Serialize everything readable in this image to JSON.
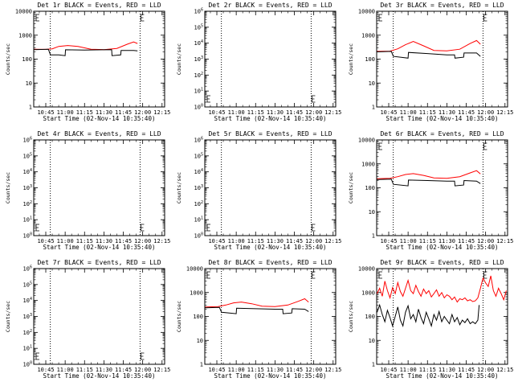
{
  "chart_data": {
    "type": "line",
    "layout": "3x3 grid",
    "xlabel": "Start Time (02-Nov-14 10:35:40)",
    "ylabel": "Counts/sec",
    "x_tick_labels": [
      "10:45",
      "11:00",
      "11:15",
      "11:30",
      "11:45",
      "12:00",
      "12:15"
    ],
    "x_tick_minutes": [
      45,
      60,
      75,
      90,
      105,
      120,
      135
    ],
    "x_range_minutes": [
      35.67,
      137
    ],
    "series_colors": {
      "events": "#000000",
      "lld": "#ff0000"
    },
    "vertical_dotted_lines_minutes": [
      48.5,
      118
    ],
    "panels": [
      {
        "title": "Det 1r BLACK = Events, RED = LLD",
        "yscale": "log",
        "ylim": [
          1,
          10000
        ],
        "y_tick_labels": [
          "1",
          "10",
          "100",
          "1000",
          "10000"
        ],
        "events": [
          [
            36,
            250
          ],
          [
            47,
            260
          ],
          [
            48.6,
            150
          ],
          [
            55,
            150
          ],
          [
            60,
            140
          ],
          [
            60.3,
            245
          ],
          [
            75,
            240
          ],
          [
            96,
            250
          ],
          [
            96.3,
            140
          ],
          [
            103,
            150
          ],
          [
            103.3,
            230
          ],
          [
            113,
            230
          ],
          [
            116,
            220
          ]
        ],
        "lld": [
          [
            36,
            260
          ],
          [
            45,
            255
          ],
          [
            50,
            270
          ],
          [
            55,
            340
          ],
          [
            62,
            370
          ],
          [
            70,
            340
          ],
          [
            80,
            260
          ],
          [
            90,
            250
          ],
          [
            100,
            280
          ],
          [
            108,
            420
          ],
          [
            113,
            520
          ],
          [
            116,
            450
          ]
        ]
      },
      {
        "title": "Det 2r BLACK = Events, RED = LLD",
        "yscale": "log",
        "ylim": [
          1,
          1000000
        ],
        "y_tick_labels": [
          "10^0",
          "10^1",
          "10^2",
          "10^3",
          "10^4",
          "10^5",
          "10^6"
        ],
        "events": [],
        "lld": []
      },
      {
        "title": "Det 3r BLACK = Events, RED = LLD",
        "yscale": "log",
        "ylim": [
          1,
          10000
        ],
        "y_tick_labels": [
          "1",
          "10",
          "100",
          "1000",
          "10000"
        ],
        "events": [
          [
            36,
            200
          ],
          [
            47,
            210
          ],
          [
            48.6,
            130
          ],
          [
            60,
            110
          ],
          [
            60.3,
            190
          ],
          [
            75,
            170
          ],
          [
            90,
            150
          ],
          [
            96,
            150
          ],
          [
            96.3,
            110
          ],
          [
            103,
            120
          ],
          [
            103.3,
            180
          ],
          [
            113,
            180
          ],
          [
            116,
            130
          ]
        ],
        "lld": [
          [
            36,
            210
          ],
          [
            46,
            215
          ],
          [
            52,
            270
          ],
          [
            58,
            400
          ],
          [
            64,
            550
          ],
          [
            72,
            360
          ],
          [
            80,
            230
          ],
          [
            90,
            220
          ],
          [
            100,
            260
          ],
          [
            108,
            450
          ],
          [
            113,
            600
          ],
          [
            116,
            420
          ]
        ]
      },
      {
        "title": "Det 4r BLACK = Events, RED = LLD",
        "yscale": "log",
        "ylim": [
          1,
          1000000
        ],
        "y_tick_labels": [
          "10^0",
          "10^1",
          "10^2",
          "10^3",
          "10^4",
          "10^5",
          "10^6"
        ],
        "events": [],
        "lld": []
      },
      {
        "title": "Det 5r BLACK = Events, RED = LLD",
        "yscale": "log",
        "ylim": [
          1,
          1000000
        ],
        "y_tick_labels": [
          "10^0",
          "10^1",
          "10^2",
          "10^3",
          "10^4",
          "10^5",
          "10^6"
        ],
        "events": [],
        "lld": []
      },
      {
        "title": "Det 6r BLACK = Events, RED = LLD",
        "yscale": "log",
        "ylim": [
          1,
          10000
        ],
        "y_tick_labels": [
          "1",
          "10",
          "100",
          "1000",
          "10000"
        ],
        "events": [
          [
            36,
            220
          ],
          [
            47,
            230
          ],
          [
            48.6,
            140
          ],
          [
            60,
            120
          ],
          [
            60.3,
            210
          ],
          [
            75,
            200
          ],
          [
            90,
            190
          ],
          [
            96,
            190
          ],
          [
            96.3,
            120
          ],
          [
            103,
            130
          ],
          [
            103.3,
            200
          ],
          [
            113,
            190
          ],
          [
            116,
            150
          ]
        ],
        "lld": [
          [
            36,
            240
          ],
          [
            46,
            250
          ],
          [
            52,
            290
          ],
          [
            58,
            360
          ],
          [
            64,
            390
          ],
          [
            72,
            330
          ],
          [
            80,
            260
          ],
          [
            90,
            250
          ],
          [
            100,
            290
          ],
          [
            108,
            420
          ],
          [
            113,
            520
          ],
          [
            116,
            380
          ]
        ]
      },
      {
        "title": "Det 7r BLACK = Events, RED = LLD",
        "yscale": "log",
        "ylim": [
          1,
          1000000
        ],
        "y_tick_labels": [
          "10^0",
          "10^1",
          "10^2",
          "10^3",
          "10^4",
          "10^5",
          "10^6"
        ],
        "events": [],
        "lld": []
      },
      {
        "title": "Det 8r BLACK = Events, RED = LLD",
        "yscale": "log",
        "ylim": [
          1,
          10000
        ],
        "y_tick_labels": [
          "1",
          "10",
          "100",
          "1000",
          "10000"
        ],
        "events": [
          [
            36,
            230
          ],
          [
            47,
            240
          ],
          [
            48.6,
            150
          ],
          [
            60,
            130
          ],
          [
            60.3,
            220
          ],
          [
            75,
            210
          ],
          [
            90,
            200
          ],
          [
            96,
            200
          ],
          [
            96.3,
            130
          ],
          [
            103,
            140
          ],
          [
            103.3,
            210
          ],
          [
            113,
            200
          ],
          [
            116,
            160
          ]
        ],
        "lld": [
          [
            36,
            250
          ],
          [
            46,
            260
          ],
          [
            52,
            300
          ],
          [
            58,
            370
          ],
          [
            64,
            400
          ],
          [
            72,
            340
          ],
          [
            80,
            270
          ],
          [
            90,
            260
          ],
          [
            100,
            300
          ],
          [
            108,
            430
          ],
          [
            113,
            550
          ],
          [
            116,
            400
          ]
        ]
      },
      {
        "title": "Det 9r BLACK = Events, RED = LLD",
        "yscale": "log",
        "ylim": [
          1,
          10000
        ],
        "y_tick_labels": [
          "1",
          "10",
          "100",
          "1000",
          "10000"
        ],
        "events": [
          [
            36,
            150
          ],
          [
            38,
            300
          ],
          [
            40,
            120
          ],
          [
            42,
            60
          ],
          [
            44,
            180
          ],
          [
            46,
            90
          ],
          [
            48,
            40
          ],
          [
            50,
            100
          ],
          [
            52,
            250
          ],
          [
            54,
            70
          ],
          [
            56,
            40
          ],
          [
            58,
            150
          ],
          [
            60,
            280
          ],
          [
            62,
            80
          ],
          [
            64,
            120
          ],
          [
            66,
            60
          ],
          [
            68,
            200
          ],
          [
            70,
            90
          ],
          [
            72,
            50
          ],
          [
            74,
            150
          ],
          [
            76,
            80
          ],
          [
            78,
            40
          ],
          [
            80,
            120
          ],
          [
            82,
            70
          ],
          [
            84,
            160
          ],
          [
            86,
            60
          ],
          [
            88,
            100
          ],
          [
            90,
            70
          ],
          [
            92,
            50
          ],
          [
            94,
            120
          ],
          [
            96,
            60
          ],
          [
            98,
            90
          ],
          [
            100,
            45
          ],
          [
            102,
            70
          ],
          [
            104,
            55
          ],
          [
            106,
            80
          ],
          [
            108,
            50
          ],
          [
            110,
            60
          ],
          [
            112,
            50
          ],
          [
            114,
            70
          ],
          [
            115,
            300
          ]
        ],
        "lld": [
          [
            36,
            900
          ],
          [
            38,
            1500
          ],
          [
            40,
            700
          ],
          [
            42,
            3000
          ],
          [
            44,
            1200
          ],
          [
            46,
            600
          ],
          [
            48,
            1600
          ],
          [
            50,
            900
          ],
          [
            52,
            2600
          ],
          [
            54,
            1100
          ],
          [
            56,
            700
          ],
          [
            58,
            1500
          ],
          [
            60,
            3200
          ],
          [
            62,
            1200
          ],
          [
            64,
            900
          ],
          [
            66,
            2000
          ],
          [
            68,
            1100
          ],
          [
            70,
            700
          ],
          [
            72,
            1400
          ],
          [
            74,
            900
          ],
          [
            76,
            1200
          ],
          [
            78,
            650
          ],
          [
            80,
            900
          ],
          [
            82,
            1300
          ],
          [
            84,
            700
          ],
          [
            86,
            1000
          ],
          [
            88,
            600
          ],
          [
            90,
            800
          ],
          [
            92,
            700
          ],
          [
            94,
            500
          ],
          [
            96,
            650
          ],
          [
            98,
            400
          ],
          [
            100,
            550
          ],
          [
            102,
            500
          ],
          [
            104,
            600
          ],
          [
            106,
            450
          ],
          [
            108,
            500
          ],
          [
            110,
            420
          ],
          [
            112,
            450
          ],
          [
            114,
            600
          ],
          [
            116,
            1500
          ],
          [
            118,
            4000
          ],
          [
            120,
            2500
          ],
          [
            122,
            1800
          ],
          [
            124,
            5000
          ],
          [
            126,
            1200
          ],
          [
            128,
            700
          ],
          [
            130,
            1500
          ],
          [
            132,
            900
          ],
          [
            134,
            500
          ],
          [
            136,
            1200
          ]
        ]
      }
    ]
  }
}
